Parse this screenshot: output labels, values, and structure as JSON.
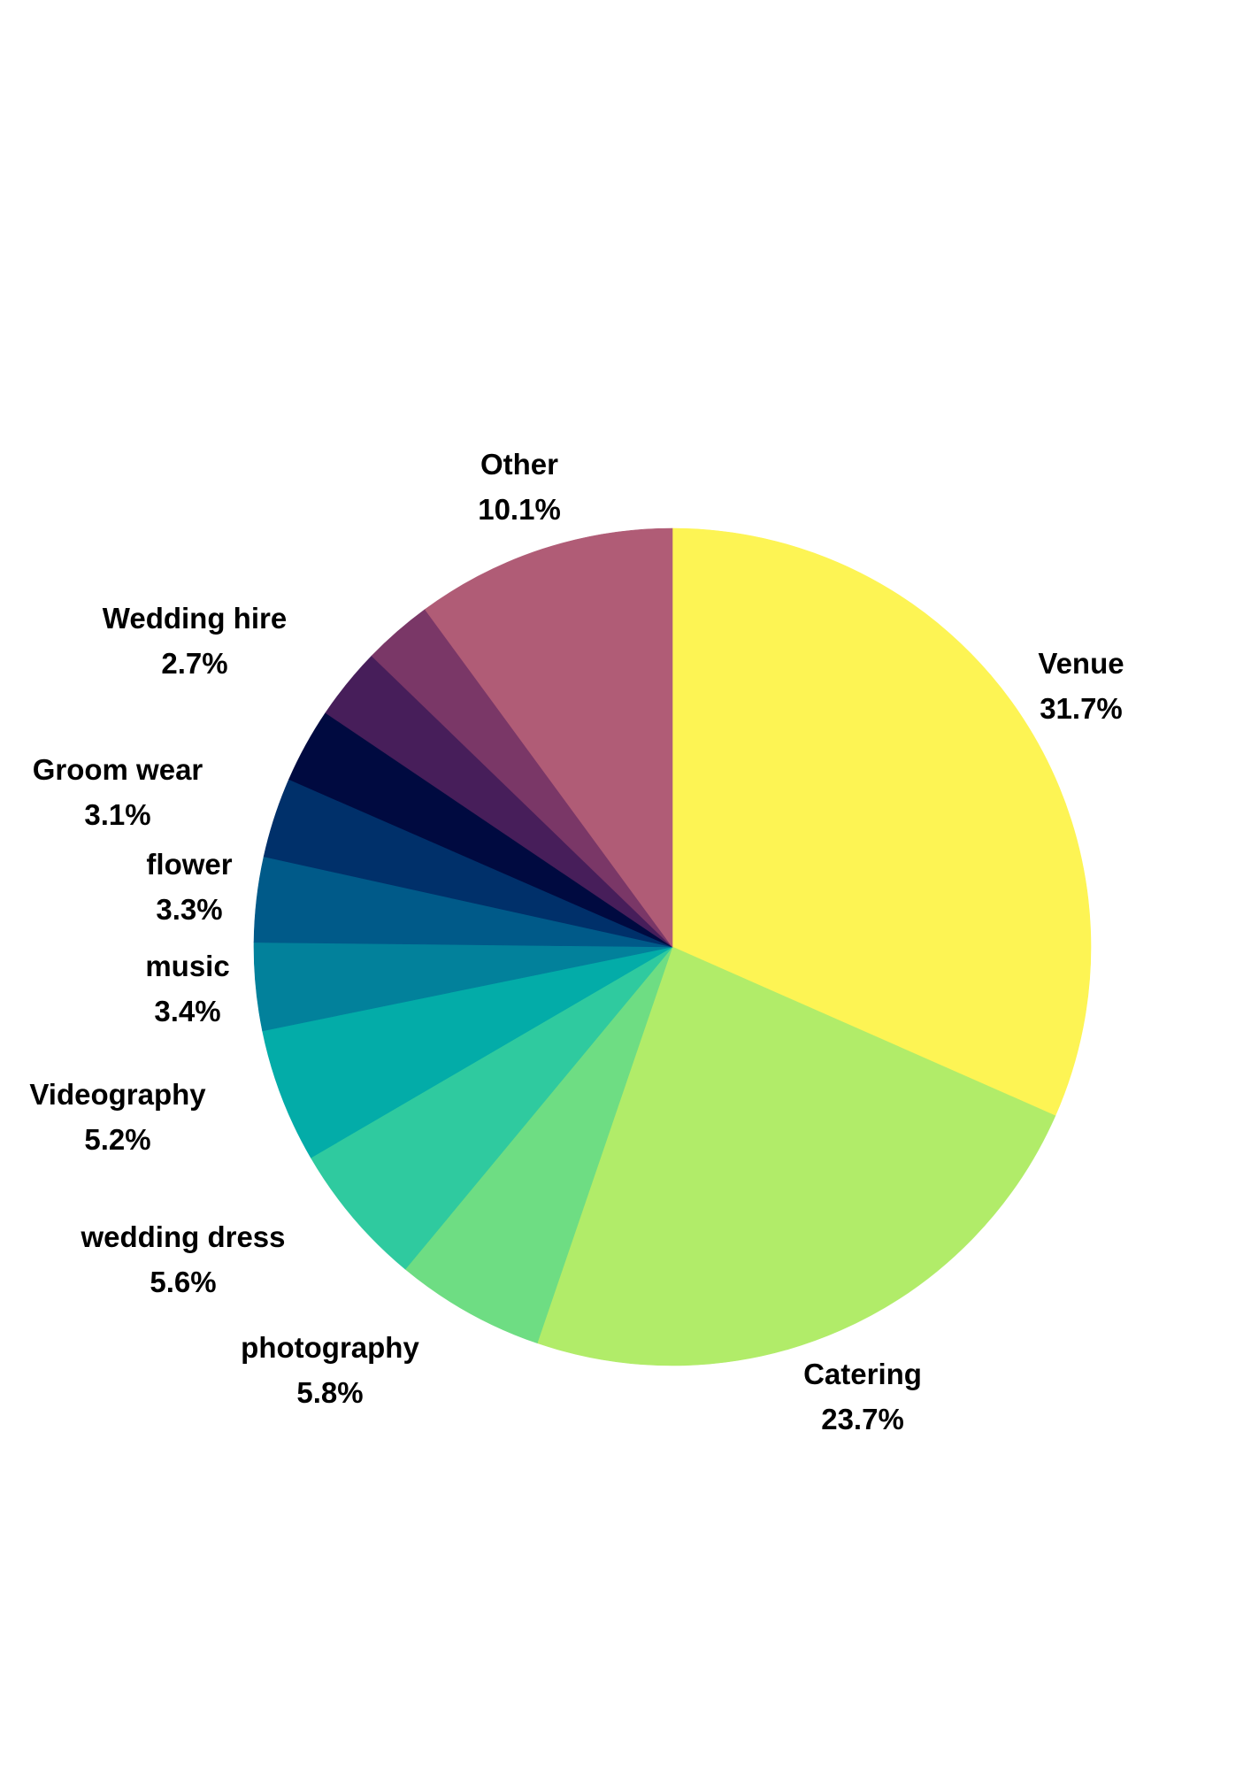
{
  "chart_data": {
    "type": "pie",
    "title": "",
    "start_angle": "12 o'clock",
    "direction": "clockwise",
    "slices": [
      {
        "key": "venue",
        "label": "Venue",
        "value": 31.7,
        "pct_label": "31.7%",
        "color": "#fdf454"
      },
      {
        "key": "catering",
        "label": "Catering",
        "value": 23.7,
        "pct_label": "23.7%",
        "color": "#b1ec69"
      },
      {
        "key": "photography",
        "label": "photography",
        "value": 5.8,
        "pct_label": "5.8%",
        "color": "#6edd83"
      },
      {
        "key": "wedding-dress",
        "label": "wedding dress",
        "value": 5.6,
        "pct_label": "5.6%",
        "color": "#2fca9f"
      },
      {
        "key": "videography",
        "label": "Videography",
        "value": 5.2,
        "pct_label": "5.2%",
        "color": "#03aca8"
      },
      {
        "key": "music",
        "label": "music",
        "value": 3.4,
        "pct_label": "3.4%",
        "color": "#02819b"
      },
      {
        "key": "flower",
        "label": "flower",
        "value": 3.3,
        "pct_label": "3.3%",
        "color": "#005a89"
      },
      {
        "key": "groom-wear",
        "label": "Groom wear",
        "value": 3.1,
        "pct_label": "3.1%",
        "color": "#00306a"
      },
      {
        "key": "bridesmaids",
        "label": "",
        "value": 2.9,
        "pct_label": "",
        "color": "#000a40"
      },
      {
        "key": "rings",
        "label": "",
        "value": 2.8,
        "pct_label": "",
        "color": "#471e5a"
      },
      {
        "key": "wedding-hire",
        "label": "Wedding hire",
        "value": 2.7,
        "pct_label": "2.7%",
        "color": "#7a3767"
      },
      {
        "key": "other",
        "label": "Other",
        "value": 10.1,
        "pct_label": "10.1%",
        "color": "#b05c76"
      }
    ]
  }
}
